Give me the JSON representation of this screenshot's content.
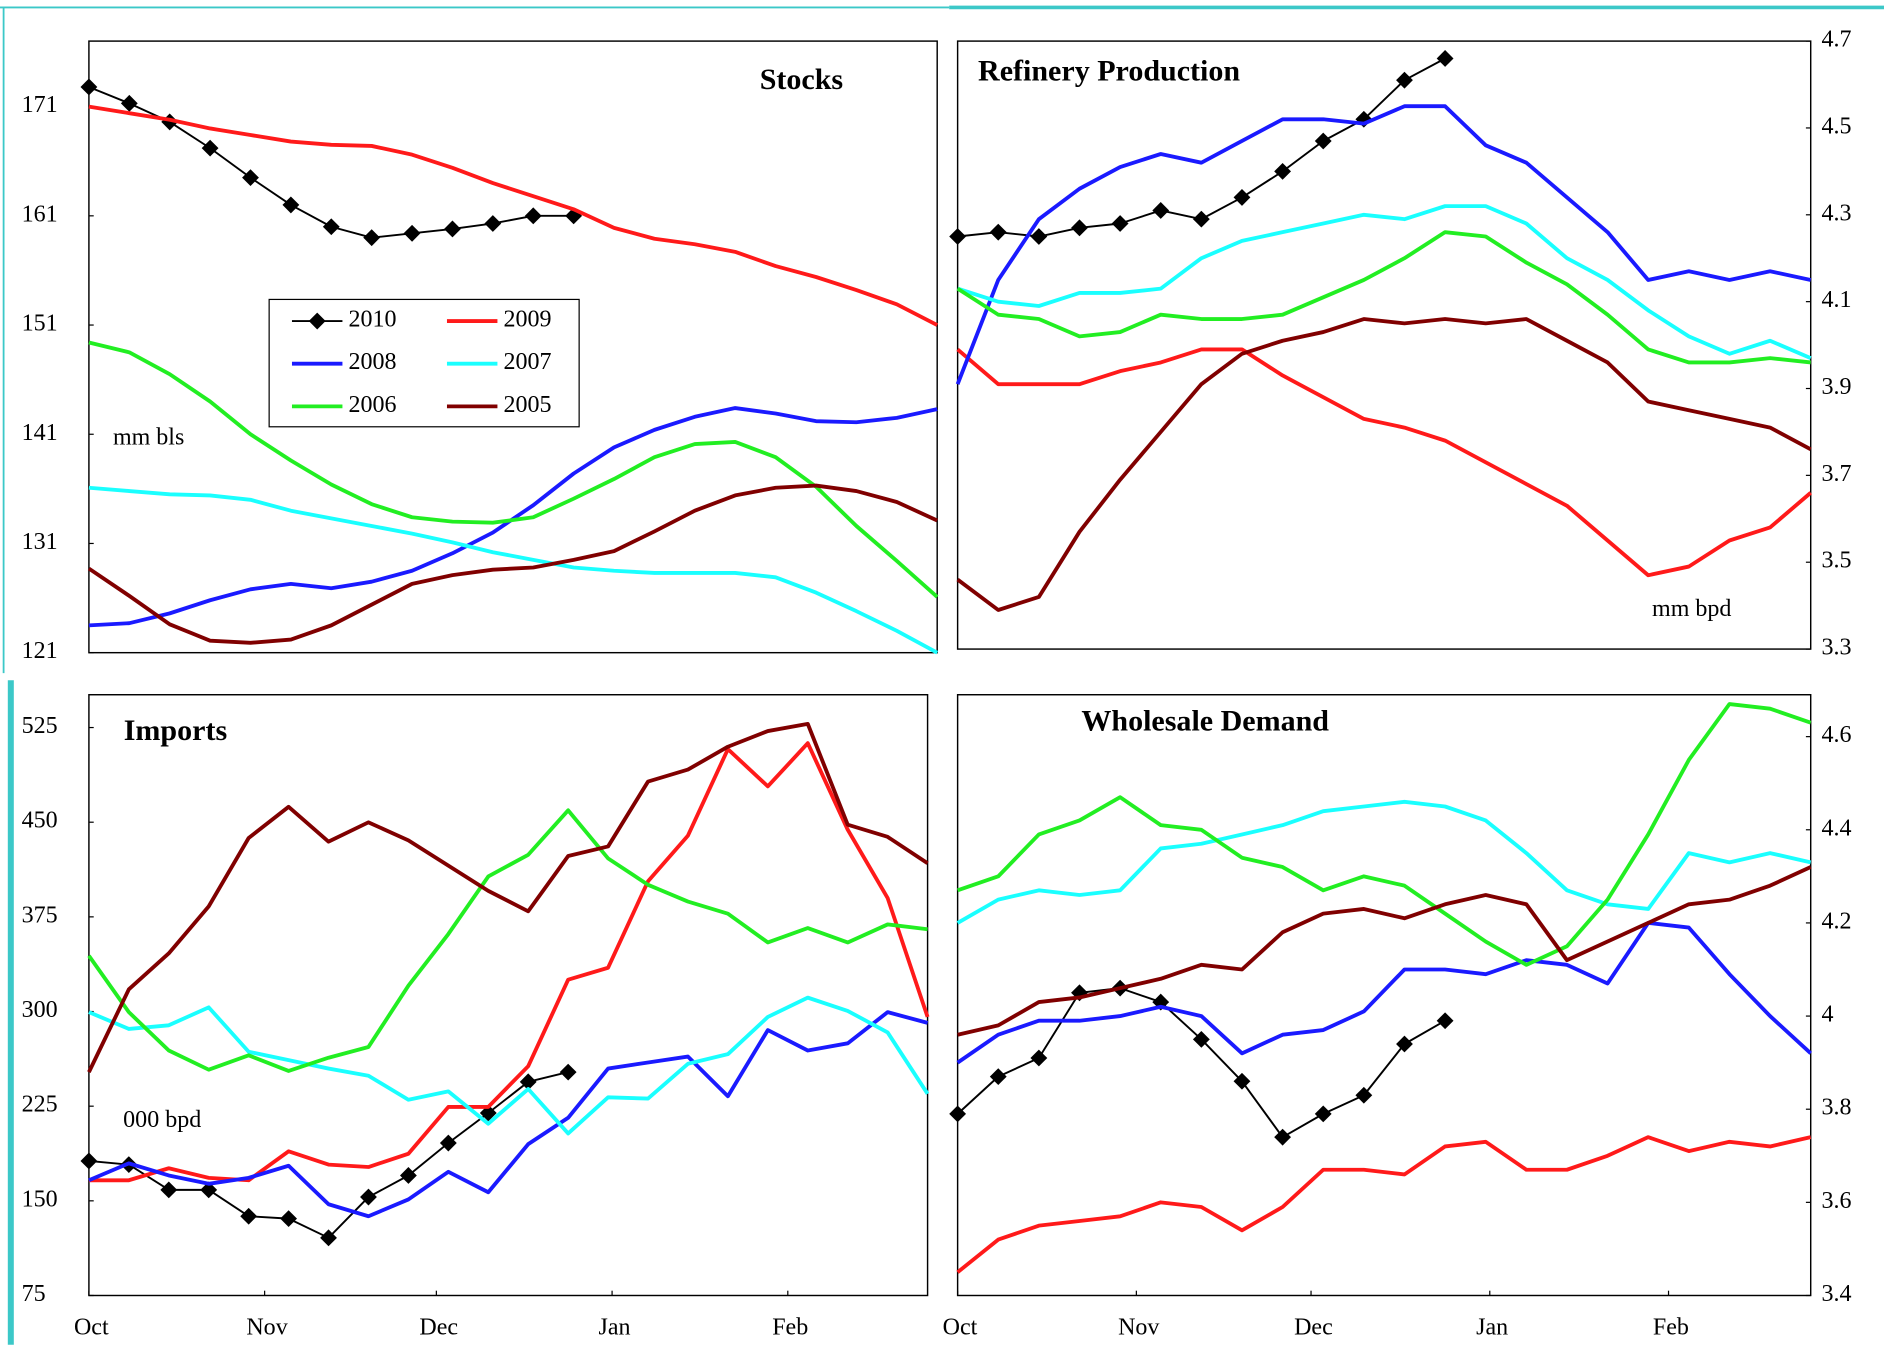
{
  "chart_data": [
    {
      "type": "line",
      "title": "Stocks",
      "unit_label": "mm bls",
      "legend": true,
      "x": [
        0,
        1,
        2,
        3,
        4,
        5,
        6,
        7,
        8,
        9,
        10,
        11,
        12,
        13,
        14,
        15,
        16,
        17,
        18,
        19,
        20,
        21
      ],
      "xlim": [
        0,
        21
      ],
      "ylim": [
        121,
        177
      ],
      "yticks": [
        121,
        131,
        141,
        151,
        161,
        171
      ],
      "series": [
        {
          "name": "2010",
          "color": "#000000",
          "marker": "diamond",
          "values": [
            172.8,
            171.3,
            169.6,
            167.2,
            164.5,
            162.0,
            160.0,
            159.0,
            159.4,
            159.8,
            160.3,
            161.0,
            161.0,
            null,
            null,
            null,
            null,
            null,
            null,
            null,
            null,
            null
          ]
        },
        {
          "name": "2009",
          "color": "#ff1a1a",
          "values": [
            171.0,
            170.4,
            169.8,
            169.0,
            168.4,
            167.8,
            167.5,
            167.4,
            166.6,
            165.4,
            164.0,
            162.8,
            161.6,
            159.9,
            158.9,
            158.4,
            157.7,
            156.4,
            155.4,
            154.2,
            152.9,
            151.0
          ]
        },
        {
          "name": "2008",
          "color": "#1a1aff",
          "values": [
            123.5,
            123.7,
            124.6,
            125.8,
            126.8,
            127.3,
            126.9,
            127.5,
            128.5,
            130.1,
            132.0,
            134.5,
            137.4,
            139.8,
            141.4,
            142.6,
            143.4,
            142.9,
            142.2,
            142.1,
            142.5,
            143.3
          ]
        },
        {
          "name": "2007",
          "color": "#1affff",
          "values": [
            136.1,
            135.8,
            135.5,
            135.4,
            135.0,
            134.0,
            133.3,
            132.6,
            131.9,
            131.1,
            130.2,
            129.5,
            128.8,
            128.5,
            128.3,
            128.3,
            128.3,
            127.9,
            126.5,
            124.8,
            123.0,
            121.0
          ]
        },
        {
          "name": "2006",
          "color": "#22ee22",
          "values": [
            149.4,
            148.5,
            146.5,
            144.0,
            141.0,
            138.6,
            136.4,
            134.6,
            133.4,
            133.0,
            132.9,
            133.4,
            135.1,
            136.9,
            138.9,
            140.1,
            140.3,
            138.9,
            136.2,
            132.6,
            129.4,
            126.1
          ]
        },
        {
          "name": "2005",
          "color": "#800000",
          "values": [
            128.7,
            126.2,
            123.6,
            122.1,
            121.9,
            122.2,
            123.5,
            125.4,
            127.3,
            128.1,
            128.6,
            128.8,
            129.5,
            130.3,
            132.1,
            134.0,
            135.4,
            136.1,
            136.3,
            135.8,
            134.8,
            133.1
          ]
        }
      ]
    },
    {
      "type": "line",
      "title": "Refinery Production",
      "unit_label": "mm bpd",
      "legend": false,
      "x": [
        0,
        1,
        2,
        3,
        4,
        5,
        6,
        7,
        8,
        9,
        10,
        11,
        12,
        13,
        14,
        15,
        16,
        17,
        18,
        19,
        20,
        21
      ],
      "xlim": [
        0,
        21
      ],
      "ylim": [
        3.3,
        4.7
      ],
      "yticks": [
        3.3,
        3.5,
        3.7,
        3.9,
        4.1,
        4.3,
        4.5,
        4.7
      ],
      "series": [
        {
          "name": "2010",
          "color": "#000000",
          "marker": "diamond",
          "values": [
            4.25,
            4.26,
            4.25,
            4.27,
            4.28,
            4.31,
            4.29,
            4.34,
            4.4,
            4.47,
            4.52,
            4.61,
            4.66,
            null,
            null,
            null,
            null,
            null,
            null,
            null,
            null,
            null
          ]
        },
        {
          "name": "2009",
          "color": "#ff1a1a",
          "values": [
            3.99,
            3.91,
            3.91,
            3.91,
            3.94,
            3.96,
            3.99,
            3.99,
            3.93,
            3.88,
            3.83,
            3.81,
            3.78,
            3.73,
            3.68,
            3.63,
            3.55,
            3.47,
            3.49,
            3.55,
            3.58,
            3.66
          ]
        },
        {
          "name": "2008",
          "color": "#1a1aff",
          "values": [
            3.91,
            4.15,
            4.29,
            4.36,
            4.41,
            4.44,
            4.42,
            4.47,
            4.52,
            4.52,
            4.51,
            4.55,
            4.55,
            4.46,
            4.42,
            4.34,
            4.26,
            4.15,
            4.17,
            4.15,
            4.17,
            4.15
          ]
        },
        {
          "name": "2007",
          "color": "#1affff",
          "values": [
            4.13,
            4.1,
            4.09,
            4.12,
            4.12,
            4.13,
            4.2,
            4.24,
            4.26,
            4.28,
            4.3,
            4.29,
            4.32,
            4.32,
            4.28,
            4.2,
            4.15,
            4.08,
            4.02,
            3.98,
            4.01,
            3.97
          ]
        },
        {
          "name": "2006",
          "color": "#22ee22",
          "values": [
            4.13,
            4.07,
            4.06,
            4.02,
            4.03,
            4.07,
            4.06,
            4.06,
            4.07,
            4.11,
            4.15,
            4.2,
            4.26,
            4.25,
            4.19,
            4.14,
            4.07,
            3.99,
            3.96,
            3.96,
            3.97,
            3.96
          ]
        },
        {
          "name": "2005",
          "color": "#800000",
          "values": [
            3.46,
            3.39,
            3.42,
            3.57,
            3.69,
            3.8,
            3.91,
            3.98,
            4.01,
            4.03,
            4.06,
            4.05,
            4.06,
            4.05,
            4.06,
            4.01,
            3.96,
            3.87,
            3.85,
            3.83,
            3.81,
            3.76
          ]
        }
      ]
    },
    {
      "type": "line",
      "title": "Imports",
      "unit_label": "000 bpd",
      "legend": false,
      "x": [
        0,
        1,
        2,
        3,
        4,
        5,
        6,
        7,
        8,
        9,
        10,
        11,
        12,
        13,
        14,
        15,
        16,
        17,
        18,
        19,
        20,
        21
      ],
      "xlim": [
        0,
        21
      ],
      "xticks": [
        {
          "value": 0,
          "label": "Oct"
        },
        {
          "value": 4.4,
          "label": "Nov"
        },
        {
          "value": 8.7,
          "label": "Dec"
        },
        {
          "value": 13.1,
          "label": "Jan"
        },
        {
          "value": 17.5,
          "label": "Feb"
        }
      ],
      "ylim": [
        75,
        551
      ],
      "yticks": [
        75,
        150,
        225,
        300,
        375,
        450,
        525
      ],
      "series": [
        {
          "name": "2010",
          "color": "#000000",
          "marker": "diamond",
          "values": [
            181.6,
            178.7,
            158.7,
            158.7,
            137.8,
            135.9,
            120.7,
            153.0,
            170.1,
            195.8,
            219.6,
            244.3,
            252.0,
            null,
            null,
            null,
            null,
            null,
            null,
            null,
            null,
            null
          ]
        },
        {
          "name": "2009",
          "color": "#ff1a1a",
          "values": [
            166.3,
            166.3,
            175.8,
            168.2,
            166.3,
            189.2,
            178.7,
            176.8,
            187.3,
            224.4,
            224.4,
            256.7,
            325.2,
            334.7,
            403.2,
            439.4,
            507.9,
            478.4,
            512.6,
            444.1,
            389.9,
            295.7
          ]
        },
        {
          "name": "2008",
          "color": "#1a1aff",
          "values": [
            166.3,
            179.7,
            170.1,
            163.5,
            168.2,
            177.8,
            147.3,
            137.8,
            151.1,
            173.0,
            156.8,
            194.9,
            215.8,
            254.8,
            259.6,
            264.3,
            232.9,
            285.3,
            269.1,
            274.8,
            299.5,
            291.0
          ]
        },
        {
          "name": "2007",
          "color": "#1affff",
          "values": [
            299.5,
            286.2,
            289.1,
            303.3,
            268.1,
            261.5,
            254.8,
            249.1,
            230.1,
            236.7,
            211.1,
            238.6,
            203.4,
            232.0,
            231.0,
            258.6,
            266.2,
            295.7,
            311.0,
            300.5,
            283.4,
            234.8
          ]
        },
        {
          "name": "2006",
          "color": "#22ee22",
          "values": [
            344.2,
            299.5,
            269.1,
            253.9,
            265.3,
            252.9,
            263.4,
            271.9,
            320.5,
            361.4,
            407.0,
            424.2,
            459.4,
            421.3,
            400.4,
            387.1,
            377.5,
            354.7,
            366.1,
            354.7,
            369.0,
            365.2
          ]
        },
        {
          "name": "2005",
          "color": "#800000",
          "values": [
            252.0,
            317.6,
            346.1,
            383.3,
            437.5,
            462.2,
            434.6,
            449.9,
            435.6,
            415.6,
            395.6,
            379.4,
            423.2,
            430.8,
            482.2,
            491.7,
            509.8,
            522.2,
            527.9,
            448.0,
            438.4,
            417.5
          ]
        }
      ]
    },
    {
      "type": "line",
      "title": "Wholesale Demand",
      "legend": false,
      "x": [
        0,
        1,
        2,
        3,
        4,
        5,
        6,
        7,
        8,
        9,
        10,
        11,
        12,
        13,
        14,
        15,
        16,
        17,
        18,
        19,
        20,
        21
      ],
      "xlim": [
        0,
        21
      ],
      "xticks": [
        {
          "value": 0,
          "label": "Oct"
        },
        {
          "value": 4.4,
          "label": "Nov"
        },
        {
          "value": 8.7,
          "label": "Dec"
        },
        {
          "value": 13.1,
          "label": "Jan"
        },
        {
          "value": 17.5,
          "label": "Feb"
        }
      ],
      "ylim": [
        3.4,
        4.69
      ],
      "yticks": [
        3.4,
        3.6,
        3.8,
        4.0,
        4.2,
        4.4,
        4.6
      ],
      "series": [
        {
          "name": "2010",
          "color": "#000000",
          "marker": "diamond",
          "values": [
            3.79,
            3.87,
            3.91,
            4.05,
            4.06,
            4.03,
            3.95,
            3.86,
            3.74,
            3.79,
            3.83,
            3.94,
            3.99,
            null,
            null,
            null,
            null,
            null,
            null,
            null,
            null,
            null
          ]
        },
        {
          "name": "2009",
          "color": "#ff1a1a",
          "values": [
            3.45,
            3.52,
            3.55,
            3.56,
            3.57,
            3.6,
            3.59,
            3.54,
            3.59,
            3.67,
            3.67,
            3.66,
            3.72,
            3.73,
            3.67,
            3.67,
            3.7,
            3.74,
            3.71,
            3.73,
            3.72,
            3.74
          ]
        },
        {
          "name": "2008",
          "color": "#1a1aff",
          "values": [
            3.9,
            3.96,
            3.99,
            3.99,
            4.0,
            4.02,
            4.0,
            3.92,
            3.96,
            3.97,
            4.01,
            4.1,
            4.1,
            4.09,
            4.12,
            4.11,
            4.07,
            4.2,
            4.19,
            4.09,
            4.0,
            3.92
          ]
        },
        {
          "name": "2007",
          "color": "#1affff",
          "values": [
            4.2,
            4.25,
            4.27,
            4.26,
            4.27,
            4.36,
            4.37,
            4.39,
            4.41,
            4.44,
            4.45,
            4.46,
            4.45,
            4.42,
            4.35,
            4.27,
            4.24,
            4.23,
            4.35,
            4.33,
            4.35,
            4.33
          ]
        },
        {
          "name": "2006",
          "color": "#22ee22",
          "values": [
            4.27,
            4.3,
            4.39,
            4.42,
            4.47,
            4.41,
            4.4,
            4.34,
            4.32,
            4.27,
            4.3,
            4.28,
            4.22,
            4.16,
            4.11,
            4.15,
            4.25,
            4.39,
            4.55,
            4.67,
            4.66,
            4.63
          ]
        },
        {
          "name": "2005",
          "color": "#800000",
          "values": [
            3.96,
            3.98,
            4.03,
            4.04,
            4.06,
            4.08,
            4.11,
            4.1,
            4.18,
            4.22,
            4.23,
            4.21,
            4.24,
            4.26,
            4.24,
            4.12,
            4.16,
            4.2,
            4.24,
            4.25,
            4.28,
            4.32
          ]
        }
      ]
    }
  ]
}
